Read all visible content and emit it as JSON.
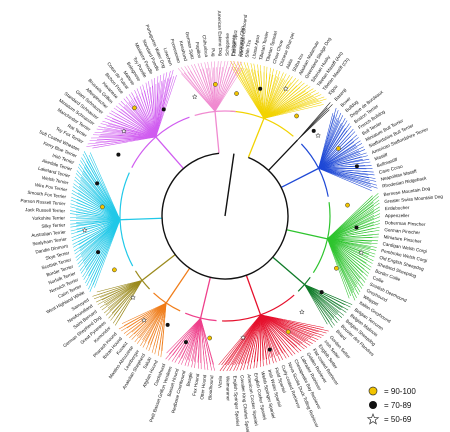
{
  "diagram": {
    "clades": [
      {
        "name": "c-yellow",
        "color": "#f2d300",
        "labels": [
          "Pekingese",
          "Japanese Chin",
          "Shih Tzu",
          "Lhasa Apso",
          "Tibetan Terrier",
          "Tibetan Spaniel",
          "Chow Chow",
          "Chinese Shar-pei",
          "Akita",
          "Shiba Inu",
          "Alaskan Malamute",
          "Greenland Sledge Dog",
          "Siberian Husky",
          "Tibetan Mastiff (Am)",
          "Tibetan Mastiff (Ch)",
          "Xigou"
        ]
      },
      {
        "name": "c-black",
        "color": "#111111",
        "labels": [
          "Basenji"
        ]
      },
      {
        "name": "c-blue",
        "color": "#1f49d6",
        "labels": [
          "Boxer",
          "Bulldog",
          "Dogue de Bordeaux",
          "Boston Terrier",
          "French Bulldog",
          "Bull Terrier",
          "Miniature Bull Terrier",
          "Staffordshire Bull Terrier",
          "American Staffordshire Terrier",
          "Mastiff",
          "Bullmastiff",
          "Cane Corso",
          "Neapolitan Mastiff",
          "Rhodesian Ridgeback"
        ]
      },
      {
        "name": "c-green",
        "color": "#2ec42e",
        "labels": [
          "Bernese Mountain Dog",
          "Greater Swiss Mountain Dog",
          "Entlebucher",
          "Appenzeller",
          "Doberman Pinscher",
          "German Pinscher",
          "Miniature Pinscher",
          "Cardigan Welsh Corgi",
          "Pembroke Welsh Corgi",
          "Old English Sheepdog",
          "Shetland Sheepdog",
          "Border Collie",
          "Collie",
          "Scottish Deerhound",
          "Greyhound",
          "Whippet",
          "Italian Greyhound"
        ]
      },
      {
        "name": "c-darkgreen",
        "color": "#0e7a28",
        "labels": [
          "Belgian Tervuren",
          "Belgian Malinois",
          "Belgian Sheepdog",
          "Bouvier des Flandres",
          "Briard"
        ]
      },
      {
        "name": "c-red",
        "color": "#e5102c",
        "labels": [
          "Gordon Setter",
          "Irish Setter",
          "English Setter",
          "Flat-coated Retriever",
          "Golden Retriever",
          "Labrador Retriever",
          "Chesapeake Bay Retriever",
          "Nova Scotia Duck Tolling Retriever",
          "Curly-coated Retriever",
          "Field Spaniel",
          "Irish Water Spaniel",
          "Welsh Springer Spaniel",
          "English Cocker Spaniel",
          "American Cocker Spaniel",
          "Cavalier King Charles Spaniel",
          "English Springer Spaniel",
          "Weimaraner",
          "Vizsla"
        ]
      },
      {
        "name": "c-pink",
        "color": "#ee3f8a",
        "labels": [
          "Bloodhound",
          "Otter Hound",
          "Fox Hound",
          "Beagle",
          "Redbone Coonhound",
          "Basset Hound",
          "Petit Basset Griffon Vendeen",
          "Dachshund"
        ]
      },
      {
        "name": "c-orange",
        "color": "#f07d1a",
        "labels": [
          "Afghan Hound",
          "Saluki",
          "Anatolian Shepherd",
          "Leonberger",
          "Mastino Abruzzese",
          "Kuvasz",
          "Ibizan Hound",
          "Pharaoh Hound"
        ]
      },
      {
        "name": "c-olive",
        "color": "#9b8a1d",
        "labels": [
          "Komondor",
          "Great Pyrenees",
          "German Shepherd Dog",
          "Saint Bernard",
          "Newfoundland",
          "Samoyed"
        ]
      },
      {
        "name": "c-cyan",
        "color": "#20c8e8",
        "labels": [
          "West Highland White",
          "Cairn Terrier",
          "Norwich Terrier",
          "Norfolk Terrier",
          "Border Terrier",
          "Scottish Terrier",
          "Skye Terrier",
          "Dandie Dinmont",
          "Sealyham Terrier",
          "Australian Terrier",
          "Silky Terrier",
          "Yorkshire Terrier",
          "Jack Russell Terrier",
          "Parson Russell Terrier",
          "Smooth Fox Terrier",
          "Wire Fox Terrier",
          "Welsh Terrier",
          "Lakeland Terrier",
          "Airedale Terrier",
          "Irish Terrier",
          "Kerry Blue Terrier",
          "Soft Coated Wheaten"
        ]
      },
      {
        "name": "c-magenta",
        "color": "#d05cf0",
        "labels": [
          "Toy Fox Terrier",
          "Rat Terrier",
          "Manchester Terrier",
          "Miniature Schnauzer",
          "Standard Schnauzer",
          "Giant Schnauzer",
          "Affenpinscher",
          "Brussels Griffon",
          "Havanese",
          "Bichon Frise",
          "Coton de Tulear",
          "Maltese",
          "Bolognese",
          "Toy Poodle",
          "Miniature Poodle",
          "Standard Poodle",
          "Portuguese Water Dog",
          "Lowchen"
        ]
      },
      {
        "name": "c-pink2",
        "color": "#f08ad0",
        "labels": [
          "Pomeranian",
          "Keeshond",
          "German Spitz",
          "Papillon",
          "Chihuahua",
          "Pug",
          "American Eskimo Dog",
          "Schipperke",
          "Finnish Spitz",
          "Norwegian Elkhound"
        ]
      }
    ],
    "legend": [
      {
        "symbol": "circle",
        "color": "#f2c400",
        "label": "= 90-100"
      },
      {
        "symbol": "black-circle",
        "color": "#111111",
        "label": "= 70-89"
      },
      {
        "symbol": "star",
        "color": "#ffffff",
        "label": "= 50-69"
      }
    ]
  }
}
